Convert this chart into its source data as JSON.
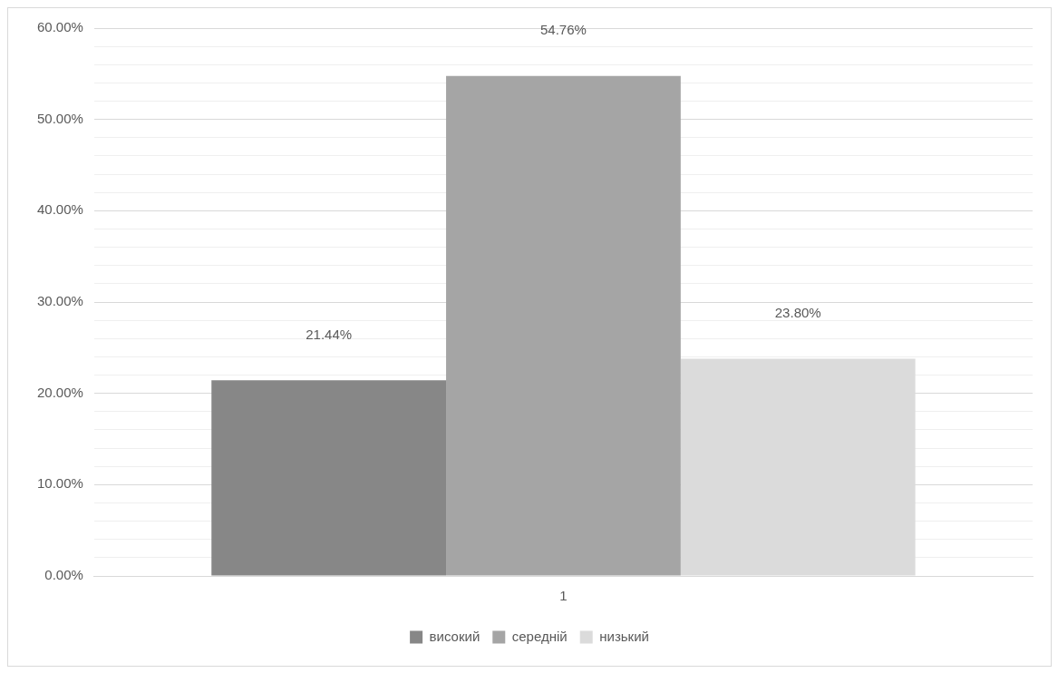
{
  "chart_data": {
    "type": "bar",
    "categories": [
      "1"
    ],
    "series": [
      {
        "name": "високий",
        "color": "#878787",
        "values": [
          21.44
        ],
        "value_labels": [
          "21.44%"
        ]
      },
      {
        "name": "середній",
        "color": "#a5a5a5",
        "values": [
          54.76
        ],
        "value_labels": [
          "54.76%"
        ]
      },
      {
        "name": "низький",
        "color": "#dbdbdb",
        "values": [
          23.8
        ],
        "value_labels": [
          "23.80%"
        ]
      }
    ],
    "ylim": [
      0,
      60
    ],
    "yticks": [
      {
        "value": 0,
        "label": "0.00%"
      },
      {
        "value": 2,
        "label": null
      },
      {
        "value": 4,
        "label": null
      },
      {
        "value": 6,
        "label": null
      },
      {
        "value": 8,
        "label": null
      },
      {
        "value": 10,
        "label": "10.00%"
      },
      {
        "value": 12,
        "label": null
      },
      {
        "value": 14,
        "label": null
      },
      {
        "value": 16,
        "label": null
      },
      {
        "value": 18,
        "label": null
      },
      {
        "value": 20,
        "label": "20.00%"
      },
      {
        "value": 22,
        "label": null
      },
      {
        "value": 24,
        "label": null
      },
      {
        "value": 26,
        "label": null
      },
      {
        "value": 28,
        "label": null
      },
      {
        "value": 30,
        "label": "30.00%"
      },
      {
        "value": 32,
        "label": null
      },
      {
        "value": 34,
        "label": null
      },
      {
        "value": 36,
        "label": null
      },
      {
        "value": 38,
        "label": null
      },
      {
        "value": 40,
        "label": "40.00%"
      },
      {
        "value": 42,
        "label": null
      },
      {
        "value": 44,
        "label": null
      },
      {
        "value": 46,
        "label": null
      },
      {
        "value": 48,
        "label": null
      },
      {
        "value": 50,
        "label": "50.00%"
      },
      {
        "value": 52,
        "label": null
      },
      {
        "value": 54,
        "label": null
      },
      {
        "value": 56,
        "label": null
      },
      {
        "value": 58,
        "label": null
      },
      {
        "value": 60,
        "label": "60.00%"
      }
    ],
    "grid": "y",
    "legend": "bottom"
  }
}
